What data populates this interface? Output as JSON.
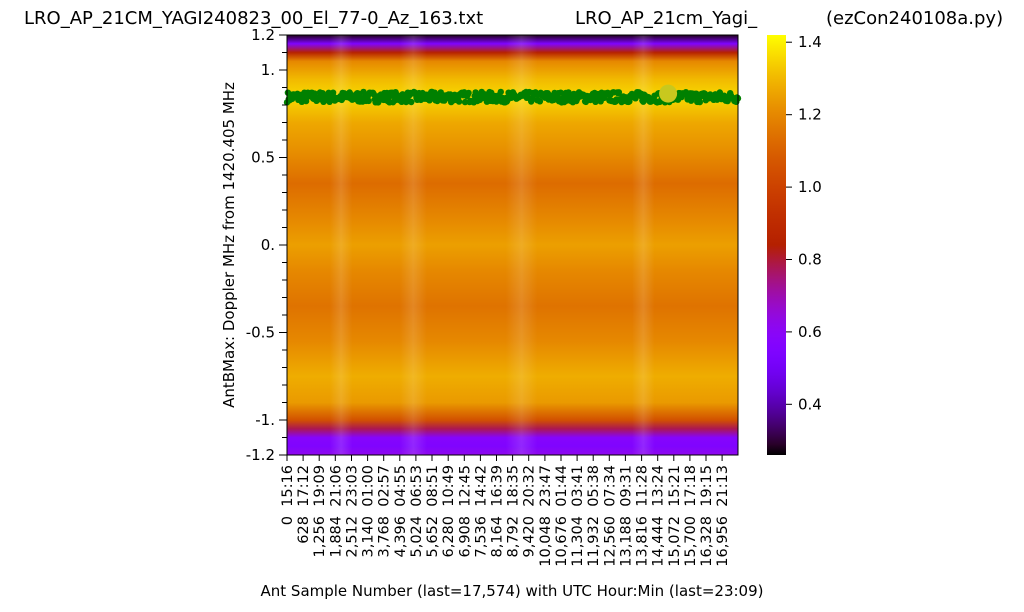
{
  "chart_data": {
    "type": "heatmap",
    "title_left": "LRO_AP_21CM_YAGI240823_00_El_77-0_Az_163.txt",
    "title_center": "LRO_AP_21cm_Yagi_",
    "title_right": "(ezCon240108a.py)",
    "xlabel": "Ant Sample Number (last=17,574) with UTC Hour:Min (last=23:09)",
    "ylabel": "AntBMax:  Doppler MHz from 1420.405 MHz",
    "ylim": [
      -1.2,
      1.2
    ],
    "xlim": [
      0,
      17574
    ],
    "y_tick_labels": [
      {
        "value": 1.2,
        "label": "1.2"
      },
      {
        "value": 1.0,
        "label": "1."
      },
      {
        "value": 0.5,
        "label": "0.5"
      },
      {
        "value": 0.0,
        "label": "0."
      },
      {
        "value": -0.5,
        "label": "-0.5"
      },
      {
        "value": -1.0,
        "label": "-1."
      },
      {
        "value": -1.2,
        "label": "-1.2"
      }
    ],
    "y_minor_step": 0.1,
    "x_ticks": [
      {
        "value": 0,
        "label": "0  15:16"
      },
      {
        "value": 628,
        "label": "628  17:12"
      },
      {
        "value": 1256,
        "label": "1,256  19:09"
      },
      {
        "value": 1884,
        "label": "1,884  21:06"
      },
      {
        "value": 2512,
        "label": "2,512  23:03"
      },
      {
        "value": 3140,
        "label": "3,140  01:00"
      },
      {
        "value": 3768,
        "label": "3,768  02:57"
      },
      {
        "value": 4396,
        "label": "4,396  04:55"
      },
      {
        "value": 5024,
        "label": "5,024  06:53"
      },
      {
        "value": 5652,
        "label": "5,652  08:51"
      },
      {
        "value": 6280,
        "label": "6,280  10:49"
      },
      {
        "value": 6908,
        "label": "6,908  12:45"
      },
      {
        "value": 7536,
        "label": "7,536  14:42"
      },
      {
        "value": 8164,
        "label": "8,164  16:39"
      },
      {
        "value": 8792,
        "label": "8,792  18:35"
      },
      {
        "value": 9420,
        "label": "9,420  20:32"
      },
      {
        "value": 10048,
        "label": "10,048  23:47"
      },
      {
        "value": 10676,
        "label": "10,676  01:44"
      },
      {
        "value": 11304,
        "label": "11,304  03:41"
      },
      {
        "value": 11932,
        "label": "11,932  05:38"
      },
      {
        "value": 12560,
        "label": "12,560  07:34"
      },
      {
        "value": 13188,
        "label": "13,188  09:31"
      },
      {
        "value": 13816,
        "label": "13,816  11:28"
      },
      {
        "value": 14444,
        "label": "14,444  13:24"
      },
      {
        "value": 15072,
        "label": "15,072  15:21"
      },
      {
        "value": 15700,
        "label": "15,700  17:18"
      },
      {
        "value": 16328,
        "label": "16,328  19:15"
      },
      {
        "value": 16956,
        "label": "16,956  21:13"
      }
    ],
    "colorbar": {
      "range": [
        0.26,
        1.42
      ],
      "ticks": [
        {
          "value": 0.4,
          "label": "0.4"
        },
        {
          "value": 0.6,
          "label": "0.6"
        },
        {
          "value": 0.8,
          "label": "0.8"
        },
        {
          "value": 1.0,
          "label": "1.0"
        },
        {
          "value": 1.2,
          "label": "1.2"
        },
        {
          "value": 1.4,
          "label": "1.4"
        }
      ],
      "colormap": "gnuplot"
    },
    "heatmap_profile": [
      {
        "y": 1.2,
        "value": 0.28
      },
      {
        "y": 1.15,
        "value": 0.55
      },
      {
        "y": 1.1,
        "value": 0.86
      },
      {
        "y": 1.05,
        "value": 1.2
      },
      {
        "y": 0.95,
        "value": 1.3
      },
      {
        "y": 0.85,
        "value": 1.36
      },
      {
        "y": 0.7,
        "value": 1.27
      },
      {
        "y": 0.55,
        "value": 1.22
      },
      {
        "y": 0.35,
        "value": 1.13
      },
      {
        "y": 0.15,
        "value": 1.2
      },
      {
        "y": 0.0,
        "value": 1.25
      },
      {
        "y": -0.15,
        "value": 1.2
      },
      {
        "y": -0.35,
        "value": 1.15
      },
      {
        "y": -0.55,
        "value": 1.2
      },
      {
        "y": -0.75,
        "value": 1.28
      },
      {
        "y": -0.9,
        "value": 1.24
      },
      {
        "y": -1.0,
        "value": 1.05
      },
      {
        "y": -1.05,
        "value": 0.78
      },
      {
        "y": -1.1,
        "value": 0.58
      },
      {
        "y": -1.15,
        "value": 0.55
      },
      {
        "y": -1.2,
        "value": 0.62
      }
    ],
    "series": [
      {
        "type": "scatter",
        "color": "#008000",
        "y_center": 0.845,
        "y_spread": 0.03,
        "x_range": [
          0,
          17574
        ]
      }
    ],
    "highlight_point": {
      "x": 14850,
      "y": 0.865,
      "color": "#c8c81e"
    }
  }
}
